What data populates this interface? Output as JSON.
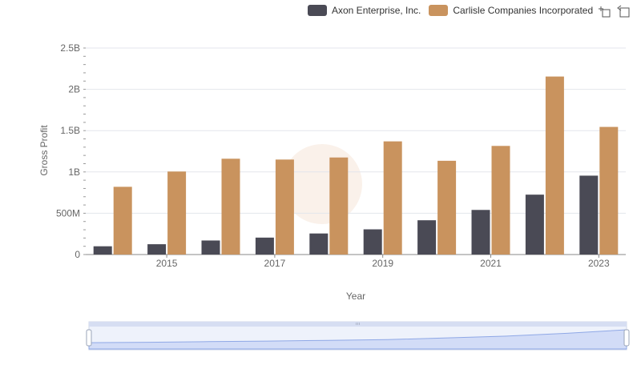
{
  "chart_data": {
    "type": "bar",
    "xlabel": "Year",
    "ylabel": "Gross Profit",
    "ylim": [
      0,
      2500000000
    ],
    "y_ticks": [
      "0",
      "500M",
      "1B",
      "1.5B",
      "2B",
      "2.5B"
    ],
    "x_tick_labels": [
      "2015",
      "2017",
      "2019",
      "2021",
      "2023"
    ],
    "categories": [
      "2014",
      "2015",
      "2016",
      "2017",
      "2018",
      "2019",
      "2020",
      "2021",
      "2022",
      "2023"
    ],
    "series": [
      {
        "name": "Axon Enterprise, Inc.",
        "color": "#4a4a55",
        "values": [
          100000000,
          125000000,
          170000000,
          205000000,
          255000000,
          305000000,
          415000000,
          540000000,
          725000000,
          955000000
        ]
      },
      {
        "name": "Carlisle Companies Incorporated",
        "color": "#c9935e",
        "values": [
          820000000,
          1005000000,
          1160000000,
          1150000000,
          1175000000,
          1370000000,
          1135000000,
          1315000000,
          2155000000,
          1545000000
        ]
      }
    ],
    "legend_position": "top-right",
    "grid": true
  },
  "toolbar": {
    "icons": [
      "zoom-icon",
      "reset-zoom-icon"
    ]
  }
}
